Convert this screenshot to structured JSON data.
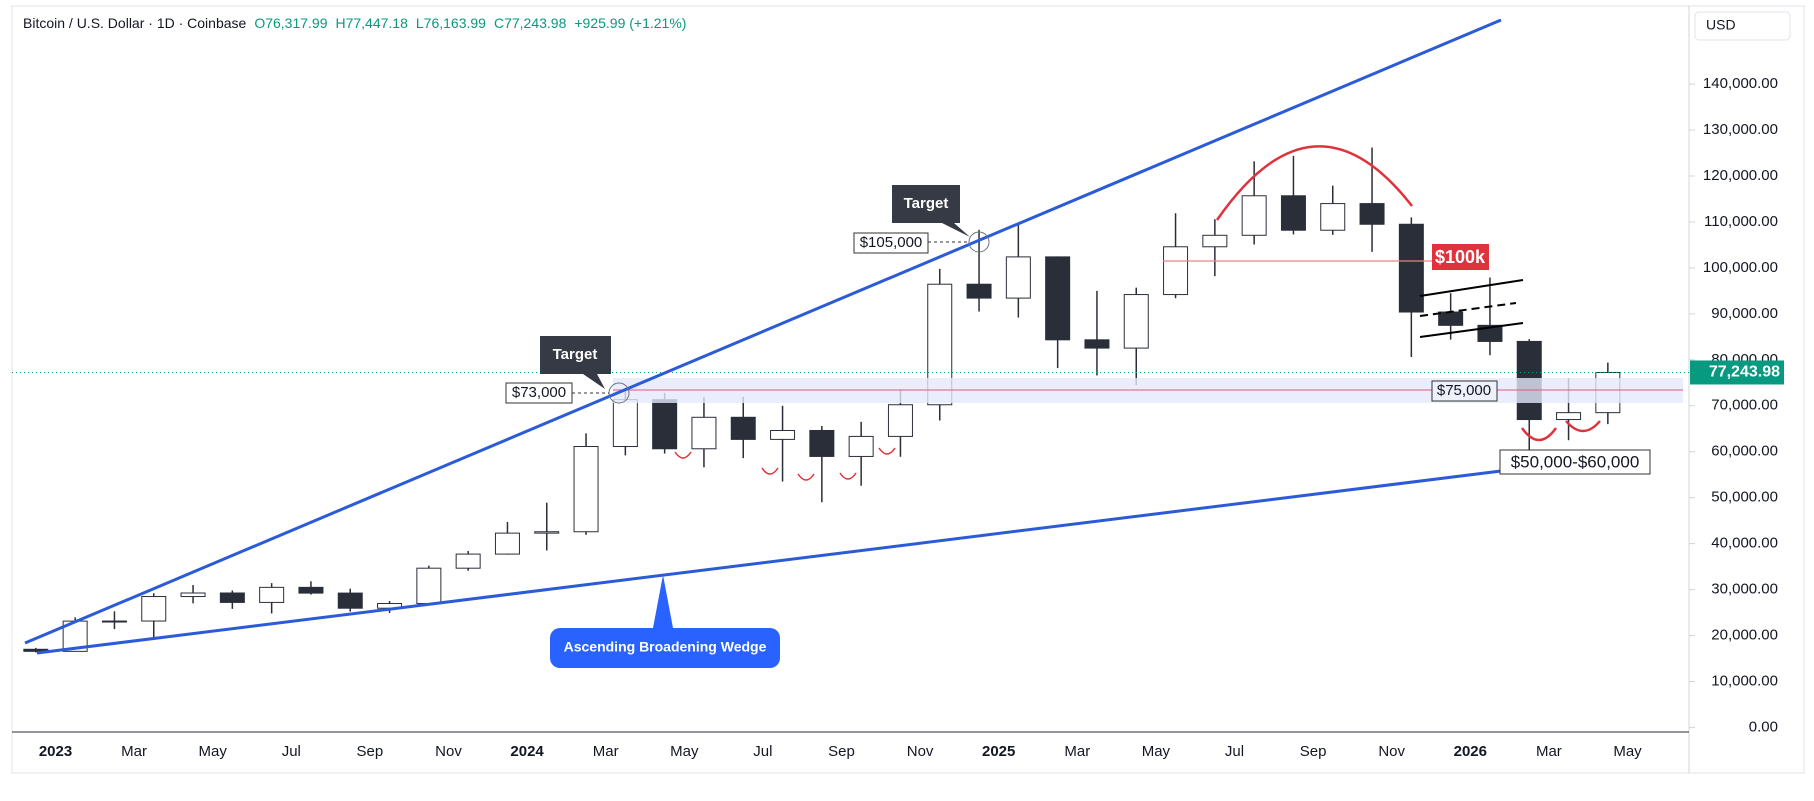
{
  "chart_data": {
    "type": "candlestick",
    "header": {
      "symbol": "Bitcoin / U.S. Dollar · 1D · Coinbase",
      "open": "O76,317.99",
      "high": "H77,447.18",
      "low": "L76,163.99",
      "close": "C77,243.98",
      "change": "+925.99 (+1.21%)"
    },
    "currency": "USD",
    "x": [
      "2022-12",
      "2023-01",
      "2023-02",
      "2023-03",
      "2023-04",
      "2023-05",
      "2023-06",
      "2023-07",
      "2023-08",
      "2023-09",
      "2023-10",
      "2023-11",
      "2023-12",
      "2024-01",
      "2024-02",
      "2024-03",
      "2024-04",
      "2024-05",
      "2024-06",
      "2024-07",
      "2024-08",
      "2024-09",
      "2024-10",
      "2024-11",
      "2024-12",
      "2025-01",
      "2025-02",
      "2025-03",
      "2025-04",
      "2025-05",
      "2025-06",
      "2025-07",
      "2025-08",
      "2025-09",
      "2025-10",
      "2025-11",
      "2025-12",
      "2026-01",
      "2026-02",
      "2026-03",
      "2026-04"
    ],
    "open": [
      17000,
      16550,
      23130,
      23150,
      28480,
      29250,
      27200,
      30480,
      29230,
      25940,
      26970,
      34650,
      37720,
      42280,
      42580,
      61130,
      71330,
      60640,
      67490,
      62680,
      64620,
      58970,
      63330,
      70220,
      96450,
      93430,
      102400,
      84350,
      82550,
      94200,
      104600,
      107100,
      115700,
      108200,
      114000,
      109500,
      90400,
      87500,
      84000,
      67000,
      68500
    ],
    "high": [
      17300,
      23950,
      25250,
      29200,
      31000,
      29800,
      31400,
      31800,
      30200,
      27500,
      35200,
      38400,
      44700,
      48900,
      64000,
      73800,
      72800,
      71900,
      71950,
      70000,
      65600,
      66500,
      73600,
      99800,
      108300,
      109600,
      102500,
      95000,
      95700,
      111900,
      110600,
      123200,
      124400,
      117900,
      126200,
      111000,
      94500,
      97900,
      84500,
      76000,
      79400
    ],
    "low": [
      16300,
      16500,
      21400,
      19600,
      27000,
      25800,
      24800,
      28900,
      25200,
      24900,
      26600,
      34100,
      37600,
      38500,
      41900,
      59200,
      59600,
      56600,
      58600,
      53500,
      49000,
      52600,
      58900,
      66800,
      90500,
      89200,
      78200,
      76600,
      74500,
      93400,
      98200,
      105100,
      107300,
      107200,
      103500,
      80600,
      84400,
      81000,
      60000,
      62500,
      66000
    ],
    "close": [
      16550,
      23130,
      23150,
      28480,
      29250,
      27200,
      30480,
      29230,
      25940,
      26970,
      34650,
      37720,
      42280,
      42580,
      61130,
      71330,
      60640,
      67490,
      62680,
      64620,
      58970,
      63330,
      70220,
      96450,
      93430,
      102400,
      84350,
      82550,
      94200,
      104600,
      107100,
      115700,
      108200,
      114000,
      109500,
      90400,
      87500,
      84000,
      67000,
      68500,
      77243.98
    ],
    "up_color": "#ffffff",
    "down_color": "#2a2e39",
    "x_labels": [
      "2023",
      "Mar",
      "May",
      "Jul",
      "Sep",
      "Nov",
      "2024",
      "Mar",
      "May",
      "Jul",
      "Sep",
      "Nov",
      "2025",
      "Mar",
      "May",
      "Jul",
      "Sep",
      "Nov",
      "2026",
      "Mar",
      "May"
    ],
    "ylim": [
      -1000,
      157000
    ],
    "yticks": [
      {
        "value": 0,
        "label": "0.00"
      },
      {
        "value": 10000,
        "label": "10,000.00"
      },
      {
        "value": 20000,
        "label": "20,000.00"
      },
      {
        "value": 30000,
        "label": "30,000.00"
      },
      {
        "value": 40000,
        "label": "40,000.00"
      },
      {
        "value": 50000,
        "label": "50,000.00"
      },
      {
        "value": 60000,
        "label": "60,000.00"
      },
      {
        "value": 70000,
        "label": "70,000.00"
      },
      {
        "value": 80000,
        "label": "80,000.00"
      },
      {
        "value": 90000,
        "label": "90,000.00"
      },
      {
        "value": 100000,
        "label": "100,000.00"
      },
      {
        "value": 110000,
        "label": "110,000.00"
      },
      {
        "value": 120000,
        "label": "120,000.00"
      },
      {
        "value": 130000,
        "label": "130,000.00"
      },
      {
        "value": 140000,
        "label": "140,000.00"
      }
    ],
    "last_price": {
      "value": 77243.98,
      "label": "77,243.98"
    },
    "annotations": {
      "target_1": "Target",
      "target_2": "Target",
      "price_73k": "$73,000",
      "price_105k": "$105,000",
      "price_100k": "$100k",
      "price_75k": "$75,000",
      "range": "$50,000-$60,000",
      "pattern": "Ascending Broadening Wedge"
    }
  }
}
